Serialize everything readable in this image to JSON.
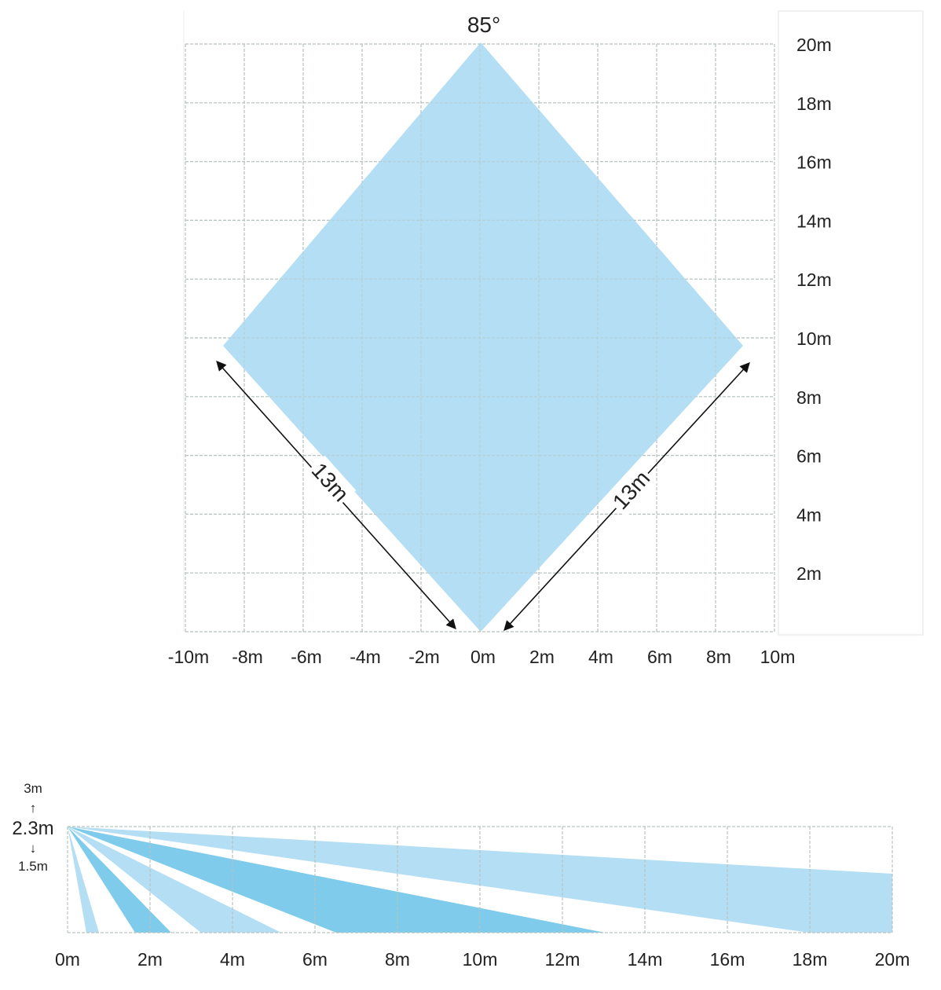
{
  "top_view": {
    "angle_label": "85°",
    "x_ticks": [
      "-10m",
      "-8m",
      "-6m",
      "-4m",
      "-2m",
      "0m",
      "2m",
      "4m",
      "6m",
      "8m",
      "10m"
    ],
    "y_ticks": [
      "2m",
      "4m",
      "6m",
      "8m",
      "10m",
      "12m",
      "14m",
      "16m",
      "18m",
      "20m"
    ],
    "left_distance_label": "13m",
    "right_distance_label": "13m",
    "zone_color": "#b3def3"
  },
  "side_view": {
    "max_height_label": "3m",
    "up_arrow": "↑",
    "mount_height_label": "2.3m",
    "down_arrow": "↓",
    "min_height_label": "1.5m",
    "x_ticks": [
      "0m",
      "2m",
      "4m",
      "6m",
      "8m",
      "10m",
      "12m",
      "14m",
      "16m",
      "18m",
      "20m"
    ],
    "light_color": "#b3def3",
    "dark_color": "#7ecbec"
  }
}
